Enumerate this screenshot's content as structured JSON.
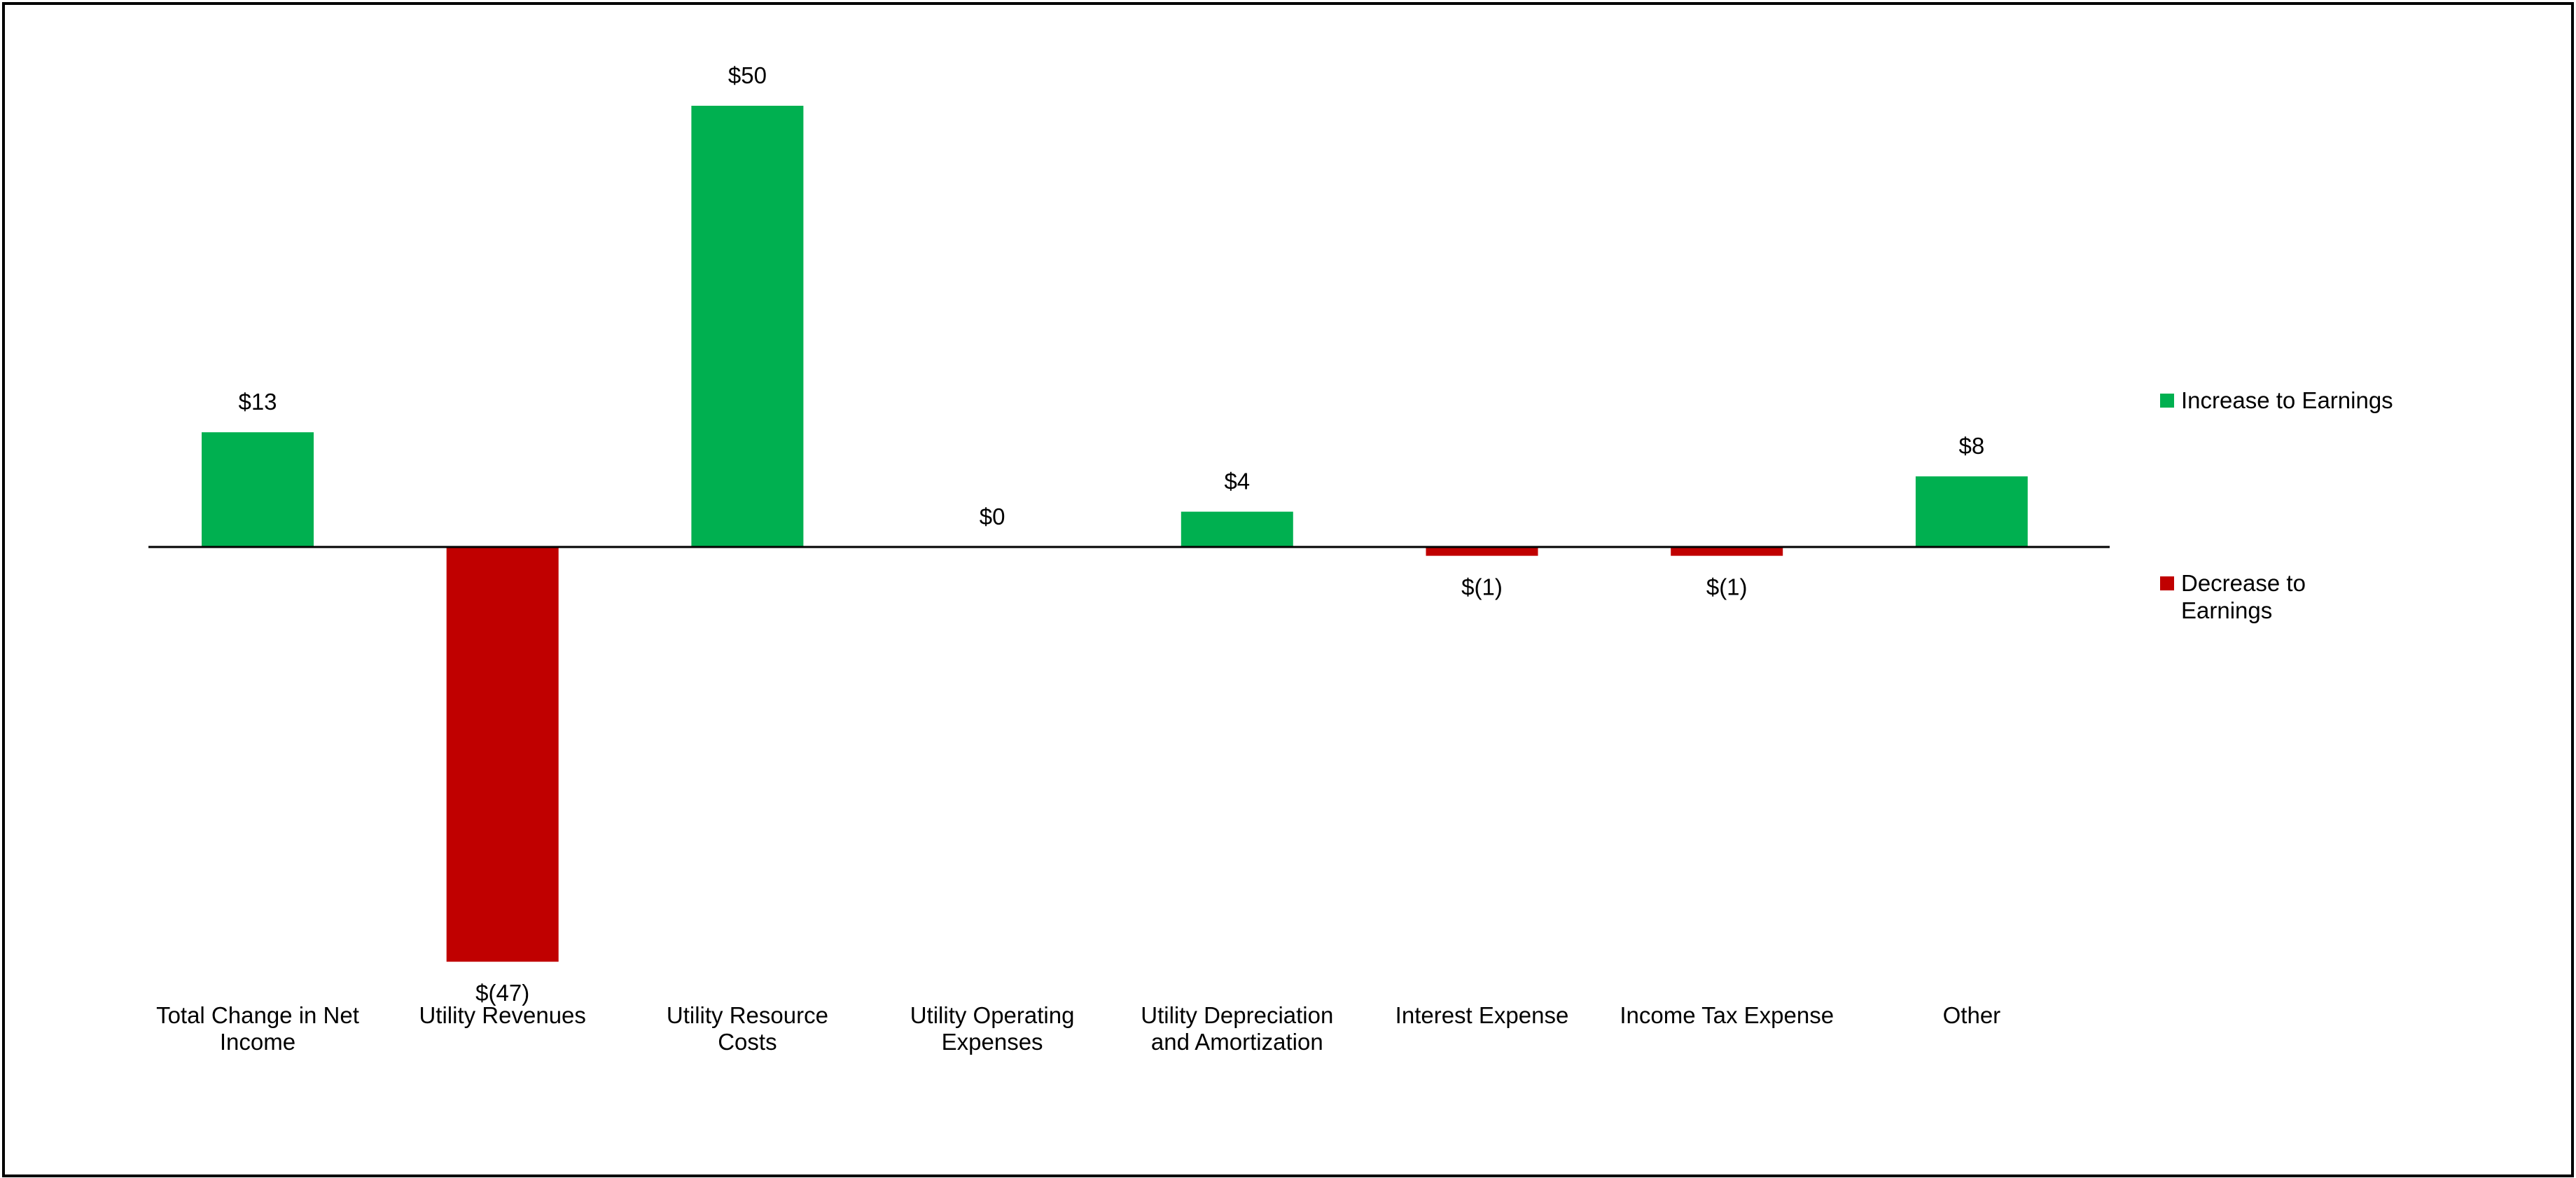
{
  "chart_data": {
    "type": "bar",
    "title": "",
    "xlabel": "",
    "ylabel": "",
    "ylim": [
      -50,
      50
    ],
    "grid": false,
    "legend_position": "right",
    "categories": [
      "Total Change in Net Income",
      "Utility Revenues",
      "Utility Resource Costs",
      "Utility Operating Expenses",
      "Utility Depreciation and Amortization",
      "Interest Expense",
      "Income Tax Expense",
      "Other"
    ],
    "values": [
      13,
      -47,
      50,
      0,
      4,
      -1,
      -1,
      8
    ],
    "value_labels": [
      "$13",
      "$(47)",
      "$50",
      "$0",
      "$4",
      "$(1)",
      "$(1)",
      "$8"
    ],
    "series": [
      {
        "name": "Increase to Earnings",
        "color": "#00B050"
      },
      {
        "name": "Decrease to Earnings",
        "color": "#C00000"
      }
    ]
  },
  "legend": {
    "increase_label": "Increase to Earnings",
    "decrease_label_line1": "Decrease to",
    "decrease_label_line2": "Earnings"
  }
}
